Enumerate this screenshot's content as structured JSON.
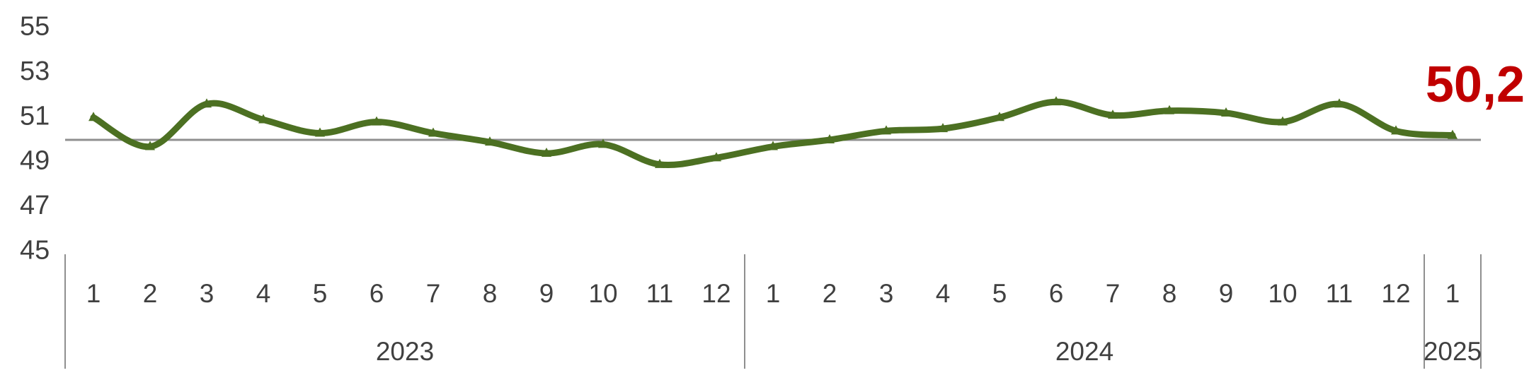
{
  "chart_data": {
    "type": "line",
    "title": "",
    "x_groups": [
      {
        "year": "2023",
        "months": [
          "1",
          "2",
          "3",
          "4",
          "5",
          "6",
          "7",
          "8",
          "9",
          "10",
          "11",
          "12"
        ]
      },
      {
        "year": "2024",
        "months": [
          "1",
          "2",
          "3",
          "4",
          "5",
          "6",
          "7",
          "8",
          "9",
          "10",
          "11",
          "12"
        ]
      },
      {
        "year": "2025",
        "months": [
          "1"
        ]
      }
    ],
    "series": [
      {
        "name": "",
        "values": [
          51.0,
          49.7,
          51.6,
          50.9,
          50.3,
          50.8,
          50.3,
          49.9,
          49.4,
          49.8,
          48.9,
          49.2,
          49.7,
          50.0,
          50.4,
          50.5,
          51.0,
          51.7,
          51.1,
          51.3,
          51.2,
          50.8,
          51.6,
          50.4,
          50.2
        ]
      }
    ],
    "ylim": [
      45,
      55
    ],
    "yticks": [
      55,
      53,
      51,
      49,
      47,
      45
    ],
    "reference_line": 50,
    "grid": "off",
    "legend": "none",
    "line_smoothing": true,
    "end_label": "50,2"
  },
  "colors": {
    "line": "#4c7022",
    "end_label": "#c00000",
    "axis_text": "#404040",
    "axis_line": "#8f8f8f"
  }
}
